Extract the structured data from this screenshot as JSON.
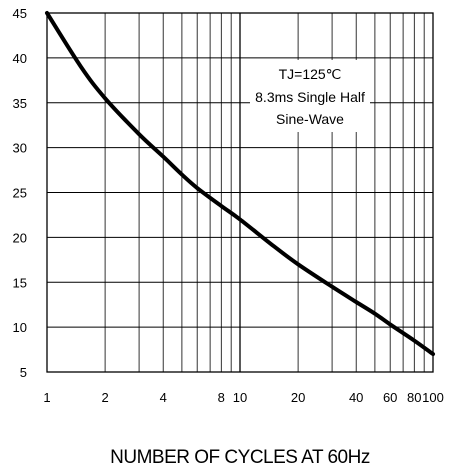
{
  "chart_data": {
    "type": "line",
    "title": "",
    "xlabel": "NUMBER OF CYCLES AT 60Hz",
    "ylabel": "",
    "x_scale": "log",
    "xlim": [
      1,
      100
    ],
    "ylim": [
      5,
      45
    ],
    "grid": true,
    "x_ticks": [
      1,
      2,
      4,
      8,
      10,
      20,
      40,
      60,
      80,
      100
    ],
    "x_tick_labels": [
      "1",
      "2",
      "4",
      "8",
      "10",
      "20",
      "40",
      "60",
      "80",
      "100"
    ],
    "y_ticks": [
      5,
      10,
      15,
      20,
      25,
      30,
      35,
      40,
      45
    ],
    "y_tick_labels": [
      "5",
      "10",
      "15",
      "20",
      "25",
      "30",
      "35",
      "40",
      "45"
    ],
    "annotation_lines": [
      "TJ=125℃",
      "8.3ms Single Half",
      "Sine-Wave"
    ],
    "series": [
      {
        "x": [
          1,
          1.5,
          2,
          3,
          4,
          5,
          6,
          8,
          10,
          15,
          20,
          30,
          40,
          50,
          60,
          80,
          100
        ],
        "y": [
          45,
          39,
          35.5,
          31.5,
          29,
          27,
          25.5,
          23.5,
          22,
          19,
          17,
          14.5,
          12.8,
          11.5,
          10.3,
          8.5,
          7
        ]
      }
    ],
    "line_color": "#000000"
  }
}
